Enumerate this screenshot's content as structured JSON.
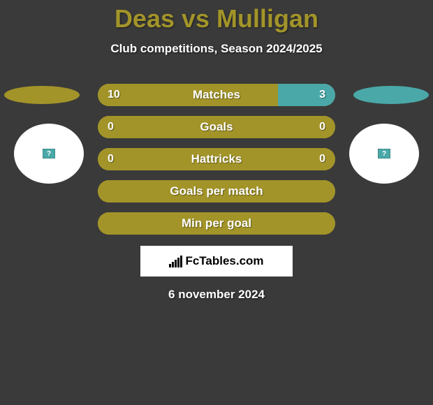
{
  "background_color": "#3a3a3a",
  "title": {
    "text": "Deas vs Mulligan",
    "color": "#a29429",
    "fontsize": 36
  },
  "subtitle": "Club competitions, Season 2024/2025",
  "colors": {
    "olive": "#a29429",
    "teal": "#4aa8a8",
    "white": "#ffffff",
    "teal_tiny": "#4aa8a8"
  },
  "ellipses": {
    "left_color": "#a29429",
    "right_color": "#4aa8a8"
  },
  "circles": {
    "bg": "#ffffff",
    "tiny_square_bg": "#4aa8a8",
    "tiny_square_text": "?"
  },
  "rows": [
    {
      "label": "Matches",
      "left_value": "10",
      "right_value": "3",
      "left_pct": 76,
      "right_pct": 24,
      "left_color": "#a29429",
      "right_color": "#4aa8a8",
      "show_values": true
    },
    {
      "label": "Goals",
      "left_value": "0",
      "right_value": "0",
      "left_pct": 100,
      "right_pct": 0,
      "left_color": "#a29429",
      "right_color": "#4aa8a8",
      "show_values": true
    },
    {
      "label": "Hattricks",
      "left_value": "0",
      "right_value": "0",
      "left_pct": 100,
      "right_pct": 0,
      "left_color": "#a29429",
      "right_color": "#4aa8a8",
      "show_values": true
    },
    {
      "label": "Goals per match",
      "left_value": "",
      "right_value": "",
      "left_pct": 100,
      "right_pct": 0,
      "left_color": "#a29429",
      "right_color": "#4aa8a8",
      "show_values": false
    },
    {
      "label": "Min per goal",
      "left_value": "",
      "right_value": "",
      "left_pct": 100,
      "right_pct": 0,
      "left_color": "#a29429",
      "right_color": "#4aa8a8",
      "show_values": false
    }
  ],
  "logo_text": "FcTables.com",
  "date": "6 november 2024"
}
